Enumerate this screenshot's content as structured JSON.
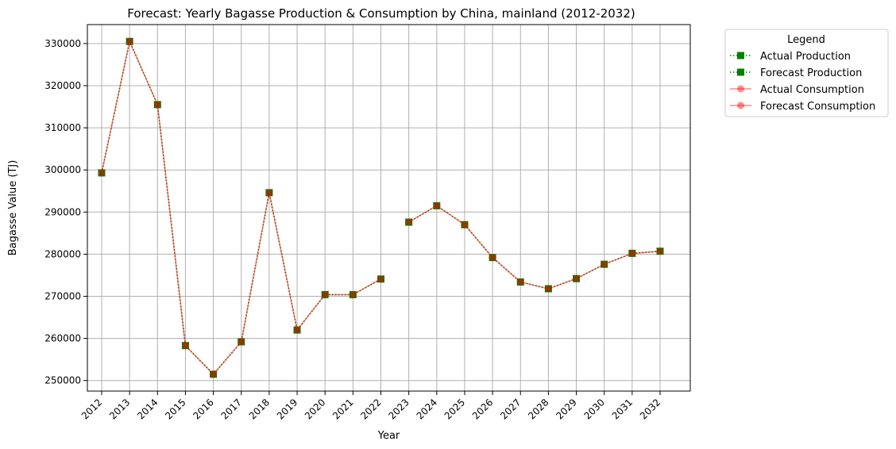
{
  "chart_data": {
    "type": "line",
    "title": "Forecast: Yearly Bagasse Production & Consumption by China, mainland (2012-2032)",
    "xlabel": "Year",
    "ylabel": "Bagasse Value (TJ)",
    "x": [
      2012,
      2013,
      2014,
      2015,
      2016,
      2017,
      2018,
      2019,
      2020,
      2021,
      2022,
      2023,
      2024,
      2025,
      2026,
      2027,
      2028,
      2029,
      2030,
      2031,
      2032
    ],
    "ylim": [
      247500,
      334500
    ],
    "yticks": [
      250000,
      260000,
      270000,
      280000,
      290000,
      300000,
      310000,
      320000,
      330000
    ],
    "grid": true,
    "legend": {
      "title": "Legend",
      "placement": "outside-top-right"
    },
    "series": [
      {
        "name": "Actual Production",
        "color": "#008000",
        "marker": "square",
        "linestyle": "dotted",
        "x": [
          2012,
          2013,
          2014,
          2015,
          2016,
          2017,
          2018,
          2019,
          2020,
          2021,
          2022
        ],
        "values": [
          299300,
          330500,
          315500,
          258300,
          251500,
          259200,
          294600,
          262000,
          270400,
          270400,
          274100
        ]
      },
      {
        "name": "Forecast Production",
        "color": "#008000",
        "marker": "square",
        "linestyle": "dotted",
        "x": [
          2023,
          2024,
          2025,
          2026,
          2027,
          2028,
          2029,
          2030,
          2031,
          2032
        ],
        "values": [
          287600,
          291500,
          287000,
          279200,
          273400,
          271800,
          274200,
          277600,
          280200,
          280700
        ]
      },
      {
        "name": "Actual Consumption",
        "color": "#ff0000",
        "marker": "circle",
        "linestyle": "solid",
        "x": [
          2012,
          2013,
          2014,
          2015,
          2016,
          2017,
          2018,
          2019,
          2020,
          2021,
          2022
        ],
        "values": [
          299300,
          330500,
          315500,
          258300,
          251500,
          259200,
          294600,
          262000,
          270400,
          270400,
          274100
        ]
      },
      {
        "name": "Forecast Consumption",
        "color": "#ff0000",
        "marker": "circle",
        "linestyle": "solid",
        "x": [
          2023,
          2024,
          2025,
          2026,
          2027,
          2028,
          2029,
          2030,
          2031,
          2032
        ],
        "values": [
          287600,
          291500,
          287000,
          279200,
          273400,
          271800,
          274200,
          277600,
          280200,
          280700
        ]
      }
    ]
  }
}
